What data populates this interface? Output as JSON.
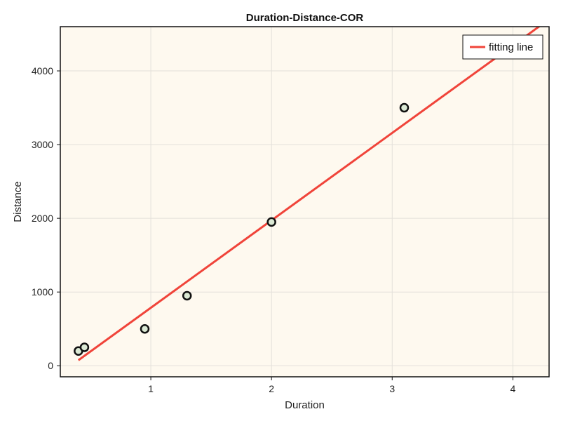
{
  "chart_data": {
    "type": "scatter",
    "title": "Duration-Distance-COR",
    "xlabel": "Duration",
    "ylabel": "Distance",
    "xlim": [
      0.25,
      4.3
    ],
    "ylim": [
      -150,
      4600
    ],
    "xticks": [
      1,
      2,
      3,
      4
    ],
    "yticks": [
      0,
      1000,
      2000,
      3000,
      4000
    ],
    "grid": true,
    "legend_position": "top-right",
    "colors": {
      "plot_bg": "#fef9ef",
      "line": "#f0443a",
      "marker_fill": "#dbe9d4",
      "marker_edge": "#111111",
      "grid": "#e3e0da"
    },
    "series": [
      {
        "kind": "scatter",
        "x": [
          0.4,
          0.45,
          0.95,
          1.3,
          2.0,
          3.1
        ],
        "y": [
          200,
          250,
          500,
          950,
          1950,
          3500
        ]
      },
      {
        "kind": "line",
        "name": "fitting line",
        "x": [
          0.4,
          4.3
        ],
        "y": [
          75,
          4700
        ]
      }
    ]
  }
}
